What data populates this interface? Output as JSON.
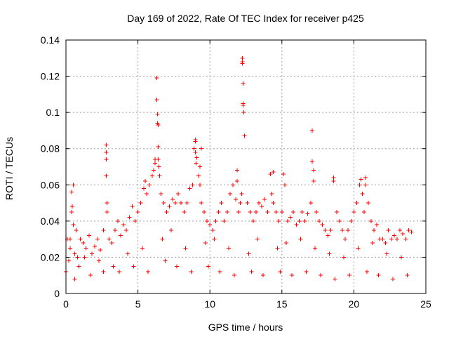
{
  "chart_data": {
    "type": "scatter",
    "title": "Day 169 of 2022, Rate Of TEC Index for receiver p425",
    "xlabel": "GPS time / hours",
    "ylabel": "ROTI / TECUs",
    "xlim": [
      0,
      25
    ],
    "ylim": [
      0,
      0.14
    ],
    "x_ticks": [
      0,
      5,
      10,
      15,
      20,
      25
    ],
    "y_ticks": [
      0,
      0.02,
      0.04,
      0.06,
      0.08,
      0.1,
      0.12,
      0.14
    ],
    "x_tick_labels": [
      "0",
      "5",
      "10",
      "15",
      "20",
      "25"
    ],
    "y_tick_labels": [
      "0",
      "0.02",
      "0.04",
      "0.06",
      "0.08",
      "0.1",
      "0.12",
      "0.14"
    ],
    "grid": true,
    "marker": "+",
    "color": "#ff0000",
    "series": [
      {
        "name": "ROTI",
        "x": [
          0.0,
          0.1,
          0.2,
          0.3,
          0.4,
          0.5,
          0.6,
          0.7,
          0.8,
          0.9,
          1.0,
          1.2,
          1.4,
          1.6,
          1.8,
          2.0,
          2.2,
          2.4,
          2.6,
          2.8,
          2.8,
          2.8,
          2.8,
          2.85,
          2.85,
          3.0,
          3.2,
          3.4,
          3.6,
          3.8,
          4.0,
          4.2,
          4.4,
          4.6,
          4.8,
          5.0,
          5.2,
          5.4,
          5.6,
          5.8,
          6.0,
          6.1,
          6.2,
          6.3,
          6.3,
          6.35,
          6.35,
          6.4,
          6.4,
          6.4,
          6.45,
          6.5,
          6.6,
          6.8,
          7.0,
          7.2,
          7.4,
          7.6,
          7.8,
          8.0,
          8.2,
          8.4,
          8.6,
          8.8,
          9.0,
          9.0,
          9.0,
          9.05,
          9.1,
          9.2,
          9.3,
          9.3,
          9.4,
          9.6,
          9.8,
          10.0,
          10.2,
          10.4,
          10.6,
          10.8,
          11.0,
          11.2,
          11.4,
          11.6,
          11.8,
          11.9,
          12.0,
          12.1,
          12.2,
          12.25,
          12.25,
          12.25,
          12.3,
          12.3,
          12.35,
          12.4,
          12.6,
          12.8,
          13.0,
          13.2,
          13.4,
          13.6,
          13.8,
          14.0,
          14.2,
          14.3,
          14.4,
          14.6,
          14.8,
          15.0,
          15.1,
          15.2,
          15.4,
          15.6,
          15.8,
          16.0,
          16.2,
          16.4,
          16.6,
          16.8,
          17.0,
          17.1,
          17.1,
          17.2,
          17.2,
          17.4,
          17.6,
          17.8,
          18.0,
          18.2,
          18.4,
          18.6,
          18.8,
          19.0,
          19.2,
          19.4,
          19.6,
          19.8,
          20.0,
          20.2,
          20.4,
          20.5,
          20.6,
          20.7,
          20.8,
          21.0,
          21.2,
          21.4,
          21.6,
          21.8,
          22.0,
          22.2,
          22.4,
          22.6,
          22.8,
          23.0,
          23.2,
          23.4,
          23.6,
          23.8,
          24.0,
          0.3,
          1.3,
          2.3,
          3.3,
          4.3,
          5.3,
          6.7,
          7.3,
          8.3,
          9.7,
          10.3,
          11.3,
          12.7,
          13.3,
          14.7,
          15.3,
          16.3,
          17.3,
          18.3,
          19.3,
          20.3,
          21.3,
          22.3,
          23.3,
          0.6,
          1.7,
          2.6,
          3.7,
          4.7,
          5.7,
          6.9,
          7.7,
          8.7,
          9.9,
          10.7,
          11.7,
          12.9,
          13.7,
          14.9,
          15.7,
          16.7,
          17.7,
          18.7,
          19.7,
          20.9,
          21.7,
          22.7,
          23.7,
          0.5,
          5.5,
          6.2,
          8.9,
          9.4,
          11.9,
          12.3,
          14.4,
          15.1,
          18.6,
          20.8,
          0.4,
          0.45
        ],
        "y": [
          0.012,
          0.03,
          0.018,
          0.025,
          0.045,
          0.038,
          0.022,
          0.035,
          0.02,
          0.015,
          0.03,
          0.028,
          0.025,
          0.032,
          0.022,
          0.026,
          0.03,
          0.024,
          0.035,
          0.082,
          0.078,
          0.074,
          0.065,
          0.05,
          0.045,
          0.03,
          0.028,
          0.035,
          0.04,
          0.032,
          0.038,
          0.035,
          0.042,
          0.048,
          0.04,
          0.045,
          0.05,
          0.058,
          0.055,
          0.06,
          0.065,
          0.068,
          0.072,
          0.119,
          0.107,
          0.099,
          0.094,
          0.093,
          0.081,
          0.074,
          0.07,
          0.065,
          0.055,
          0.05,
          0.045,
          0.048,
          0.052,
          0.05,
          0.055,
          0.05,
          0.045,
          0.05,
          0.058,
          0.06,
          0.085,
          0.084,
          0.078,
          0.072,
          0.075,
          0.065,
          0.07,
          0.06,
          0.05,
          0.045,
          0.04,
          0.038,
          0.035,
          0.04,
          0.045,
          0.05,
          0.04,
          0.045,
          0.055,
          0.06,
          0.052,
          0.068,
          0.045,
          0.05,
          0.055,
          0.13,
          0.128,
          0.127,
          0.116,
          0.104,
          0.1,
          0.087,
          0.05,
          0.045,
          0.04,
          0.045,
          0.05,
          0.048,
          0.052,
          0.045,
          0.066,
          0.055,
          0.05,
          0.045,
          0.04,
          0.045,
          0.066,
          0.06,
          0.04,
          0.042,
          0.045,
          0.038,
          0.04,
          0.045,
          0.04,
          0.044,
          0.05,
          0.09,
          0.073,
          0.068,
          0.062,
          0.045,
          0.04,
          0.038,
          0.035,
          0.032,
          0.035,
          0.064,
          0.045,
          0.04,
          0.035,
          0.03,
          0.035,
          0.04,
          0.045,
          0.05,
          0.06,
          0.063,
          0.055,
          0.045,
          0.064,
          0.05,
          0.04,
          0.035,
          0.038,
          0.03,
          0.03,
          0.028,
          0.035,
          0.03,
          0.032,
          0.03,
          0.035,
          0.033,
          0.03,
          0.035,
          0.034,
          0.03,
          0.02,
          0.018,
          0.015,
          0.022,
          0.025,
          0.03,
          0.035,
          0.025,
          0.028,
          0.03,
          0.025,
          0.022,
          0.03,
          0.025,
          0.028,
          0.03,
          0.025,
          0.022,
          0.02,
          0.025,
          0.028,
          0.022,
          0.02,
          0.008,
          0.01,
          0.012,
          0.012,
          0.015,
          0.012,
          0.018,
          0.015,
          0.012,
          0.015,
          0.012,
          0.01,
          0.012,
          0.01,
          0.012,
          0.01,
          0.012,
          0.01,
          0.008,
          0.01,
          0.012,
          0.01,
          0.008,
          0.01,
          0.06,
          0.062,
          0.074,
          0.08,
          0.08,
          0.062,
          0.105,
          0.067,
          0.066,
          0.062,
          0.06,
          0.056,
          0.048
        ]
      }
    ]
  }
}
